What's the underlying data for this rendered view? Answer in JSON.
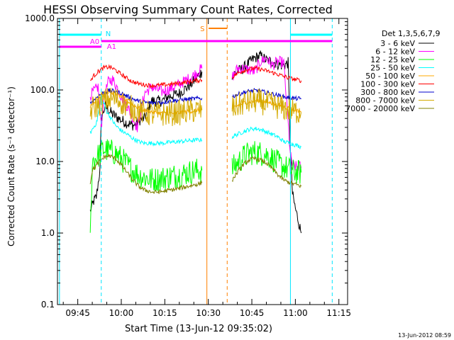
{
  "chart_data": {
    "type": "line",
    "title": "HESSI Observing Summary Count Rates, Corrected",
    "xlabel": "Start Time (13-Jun-12 09:35:02)",
    "ylabel": "Corrected Count Rate (s⁻¹ detector⁻¹)",
    "yscale": "log",
    "ylim": [
      0.1,
      1000
    ],
    "xlim": [
      "09:38",
      "11:18"
    ],
    "x_unit": "minutes after 09:38",
    "x_tick_labels": [
      "09:45",
      "10:00",
      "10:15",
      "10:30",
      "10:45",
      "11:00",
      "11:15"
    ],
    "y_tick_labels": [
      "0.1",
      "1.0",
      "10.0",
      "100.0",
      "1000.0"
    ],
    "grid": false,
    "legend_title": "Det 1,3,5,6,7,9",
    "legend_position": "right",
    "timestamp": "13-Jun-2012 08:59",
    "annotations": {
      "N": "N",
      "S": "S",
      "A0": "A0",
      "A1": "A1"
    },
    "night_lines_min": [
      [
        0.7,
        15.1
      ],
      [
        80.3,
        94.7
      ]
    ],
    "saa_lines_min": [
      [
        51.5,
        58.5
      ]
    ],
    "n_bars_min": [
      [
        0.7,
        15.1
      ],
      [
        80.3,
        94.7
      ]
    ],
    "a0_bar_min": [
      0.7,
      15.1
    ],
    "a1_bar_min": [
      15.1,
      94.7
    ],
    "s_bar_min": [
      52.1,
      58.5
    ],
    "series": [
      {
        "name": "3 - 6 keV",
        "color": "#000000",
        "x": [
          11.3,
          12.5,
          13.4,
          14.7,
          15.1,
          16.5,
          18.0,
          19.2,
          21.1,
          23.0,
          25.0,
          26.5,
          28.2,
          30.0,
          32.5,
          36.0,
          38.0,
          42.0,
          46.0,
          49.8,
          60.2,
          62.0,
          64.0,
          66.0,
          68.0,
          70.0,
          72.0,
          74.0,
          76.0,
          78.0,
          79.5,
          80.3,
          81.0,
          82.0,
          83.0,
          84.0
        ],
        "y": [
          2.0,
          2.8,
          3.2,
          8.0,
          40,
          60,
          50,
          45,
          40,
          36,
          33,
          32,
          38,
          40,
          70,
          70,
          80,
          90,
          120,
          180,
          160,
          180,
          200,
          240,
          280,
          300,
          260,
          250,
          230,
          220,
          240,
          15,
          3.5,
          2.2,
          1.5,
          1.0
        ]
      },
      {
        "name": "6 - 12 keV",
        "color": "#ff00ff",
        "x": [
          11.3,
          12.5,
          14.0,
          15.1,
          15.8,
          17.5,
          19.0,
          20.5,
          22.0,
          24.0,
          26.0,
          27.5,
          28.5,
          30.0,
          32.5,
          36.0,
          38.0,
          42.0,
          46.0,
          49.8,
          60.2,
          62.0,
          64.0,
          66.0,
          68.0,
          70.0,
          72.0,
          74.0,
          76.0,
          78.0,
          80.3,
          81.0,
          82.0,
          84.0
        ],
        "y": [
          85,
          95,
          110,
          30,
          70,
          130,
          140,
          110,
          80,
          60,
          40,
          30,
          45,
          90,
          110,
          95,
          100,
          120,
          150,
          200,
          150,
          200,
          200,
          190,
          180,
          250,
          280,
          220,
          250,
          240,
          12,
          9,
          8.5,
          8.5
        ]
      },
      {
        "name": "12 - 25 keV",
        "color": "#00ff00",
        "x": [
          11.3,
          12.0,
          14.0,
          16.0,
          18.0,
          20.0,
          22.0,
          24.0,
          26.0,
          28.0,
          30.0,
          33.0,
          36.0,
          39.0,
          42.0,
          45.0,
          48.0,
          49.8,
          60.2,
          62.0,
          64.0,
          66.0,
          68.0,
          70.0,
          72.0,
          74.0,
          76.0,
          78.0,
          80.3,
          82.0,
          84.0
        ],
        "y": [
          0.8,
          10.0,
          12.0,
          15.0,
          14.0,
          13.0,
          11.0,
          9.0,
          7.5,
          6.5,
          6.0,
          5.5,
          5.8,
          6.2,
          6.5,
          7.0,
          7.5,
          7.5,
          8.0,
          9.5,
          11.5,
          13.0,
          13.5,
          13.0,
          12.5,
          11.0,
          9.5,
          8.5,
          7.5,
          7.0,
          7.0
        ]
      },
      {
        "name": "25 - 50 keV",
        "color": "#00ffff",
        "x": [
          11.3,
          12.0,
          13.5,
          15.0,
          16.0,
          17.0,
          18.5,
          20.0,
          22.0,
          24.0,
          26.0,
          28.0,
          30.0,
          33.0,
          36.0,
          39.0,
          42.0,
          45.0,
          48.0,
          49.8,
          60.2,
          62.0,
          64.0,
          66.0,
          68.0,
          70.0,
          72.0,
          74.0,
          76.0,
          78.0,
          80.3,
          82.0,
          84.0
        ],
        "y": [
          25,
          28,
          35,
          75,
          65,
          50,
          40,
          32,
          27,
          24,
          21,
          19,
          18,
          18,
          18,
          18.5,
          19,
          19.5,
          20,
          20,
          22,
          24,
          26,
          28,
          29,
          28,
          26,
          24,
          22,
          19,
          18,
          17,
          16
        ]
      },
      {
        "name": "50 - 100 keV",
        "color": "#ffaa00",
        "x": [
          11.3,
          12.0,
          14.0,
          16.0,
          18.0,
          20.0,
          22.0,
          24.0,
          26.0,
          28.0,
          30.0,
          33.0,
          36.0,
          39.0,
          42.0,
          45.0,
          48.0,
          49.8,
          60.2,
          62.0,
          64.0,
          66.0,
          68.0,
          70.0,
          72.0,
          74.0,
          76.0,
          78.0,
          80.3,
          82.0,
          84.0
        ],
        "y": [
          60,
          65,
          75,
          88,
          95,
          90,
          80,
          70,
          62,
          56,
          52,
          49,
          47,
          47,
          48,
          50,
          52,
          53,
          55,
          60,
          65,
          68,
          70,
          70,
          68,
          65,
          62,
          58,
          55,
          52,
          50
        ]
      },
      {
        "name": "100 - 300 keV",
        "color": "#ff0000",
        "x": [
          11.3,
          12.0,
          14.0,
          16.0,
          18.0,
          20.0,
          22.0,
          24.0,
          26.0,
          28.0,
          30.0,
          33.0,
          36.0,
          39.0,
          42.0,
          45.0,
          48.0,
          49.8,
          60.2,
          62.0,
          64.0,
          66.0,
          68.0,
          70.0,
          72.0,
          74.0,
          76.0,
          78.0,
          80.3,
          82.0,
          84.0
        ],
        "y": [
          130,
          150,
          180,
          205,
          210,
          190,
          165,
          145,
          130,
          122,
          118,
          115,
          117,
          120,
          125,
          130,
          135,
          138,
          150,
          170,
          185,
          195,
          200,
          195,
          185,
          175,
          165,
          155,
          145,
          140,
          135
        ]
      },
      {
        "name": "300 - 800 keV",
        "color": "#0000cc",
        "x": [
          11.3,
          12.0,
          14.0,
          16.0,
          18.0,
          20.0,
          22.0,
          24.0,
          26.0,
          28.0,
          30.0,
          33.0,
          36.0,
          39.0,
          42.0,
          45.0,
          48.0,
          49.8,
          60.2,
          62.0,
          64.0,
          66.0,
          68.0,
          70.0,
          72.0,
          74.0,
          76.0,
          78.0,
          80.3,
          82.0,
          84.0
        ],
        "y": [
          65,
          70,
          82,
          92,
          98,
          96,
          90,
          82,
          75,
          70,
          67,
          66,
          67,
          70,
          72,
          74,
          76,
          77,
          80,
          86,
          92,
          96,
          98,
          96,
          92,
          88,
          84,
          80,
          78,
          76,
          75
        ]
      },
      {
        "name": "800 - 7000 keV",
        "color": "#d4aa00",
        "x": [
          11.3,
          12.0,
          14.0,
          16.0,
          18.0,
          20.0,
          22.0,
          24.0,
          26.0,
          28.0,
          30.0,
          33.0,
          36.0,
          39.0,
          42.0,
          45.0,
          48.0,
          49.8,
          60.2,
          62.0,
          64.0,
          66.0,
          68.0,
          70.0,
          72.0,
          74.0,
          76.0,
          78.0,
          80.3,
          82.0,
          84.0
        ],
        "y": [
          50,
          55,
          62,
          70,
          75,
          74,
          68,
          60,
          55,
          51,
          48,
          46,
          46,
          47,
          48,
          50,
          52,
          52,
          55,
          60,
          65,
          68,
          70,
          68,
          65,
          62,
          58,
          55,
          52,
          50,
          49
        ]
      },
      {
        "name": "7000 - 20000 keV",
        "color": "#808000",
        "x": [
          11.3,
          12.0,
          14.0,
          16.0,
          18.0,
          20.0,
          22.0,
          24.0,
          26.0,
          28.0,
          30.0,
          33.0,
          36.0,
          39.0,
          42.0,
          45.0,
          48.0,
          49.8,
          60.2,
          62.0,
          64.0,
          66.0,
          68.0,
          70.0,
          72.0,
          74.0,
          76.0,
          78.0,
          80.3,
          82.0,
          84.0
        ],
        "y": [
          5.0,
          7.5,
          9.5,
          11.5,
          12.0,
          11.0,
          9.0,
          7.0,
          5.5,
          4.5,
          4.0,
          3.7,
          3.8,
          4.0,
          4.2,
          4.5,
          4.8,
          5.0,
          5.5,
          7.0,
          9.0,
          10.5,
          11.0,
          10.5,
          9.5,
          8.0,
          6.5,
          5.5,
          5.0,
          4.8,
          4.5
        ]
      }
    ]
  }
}
